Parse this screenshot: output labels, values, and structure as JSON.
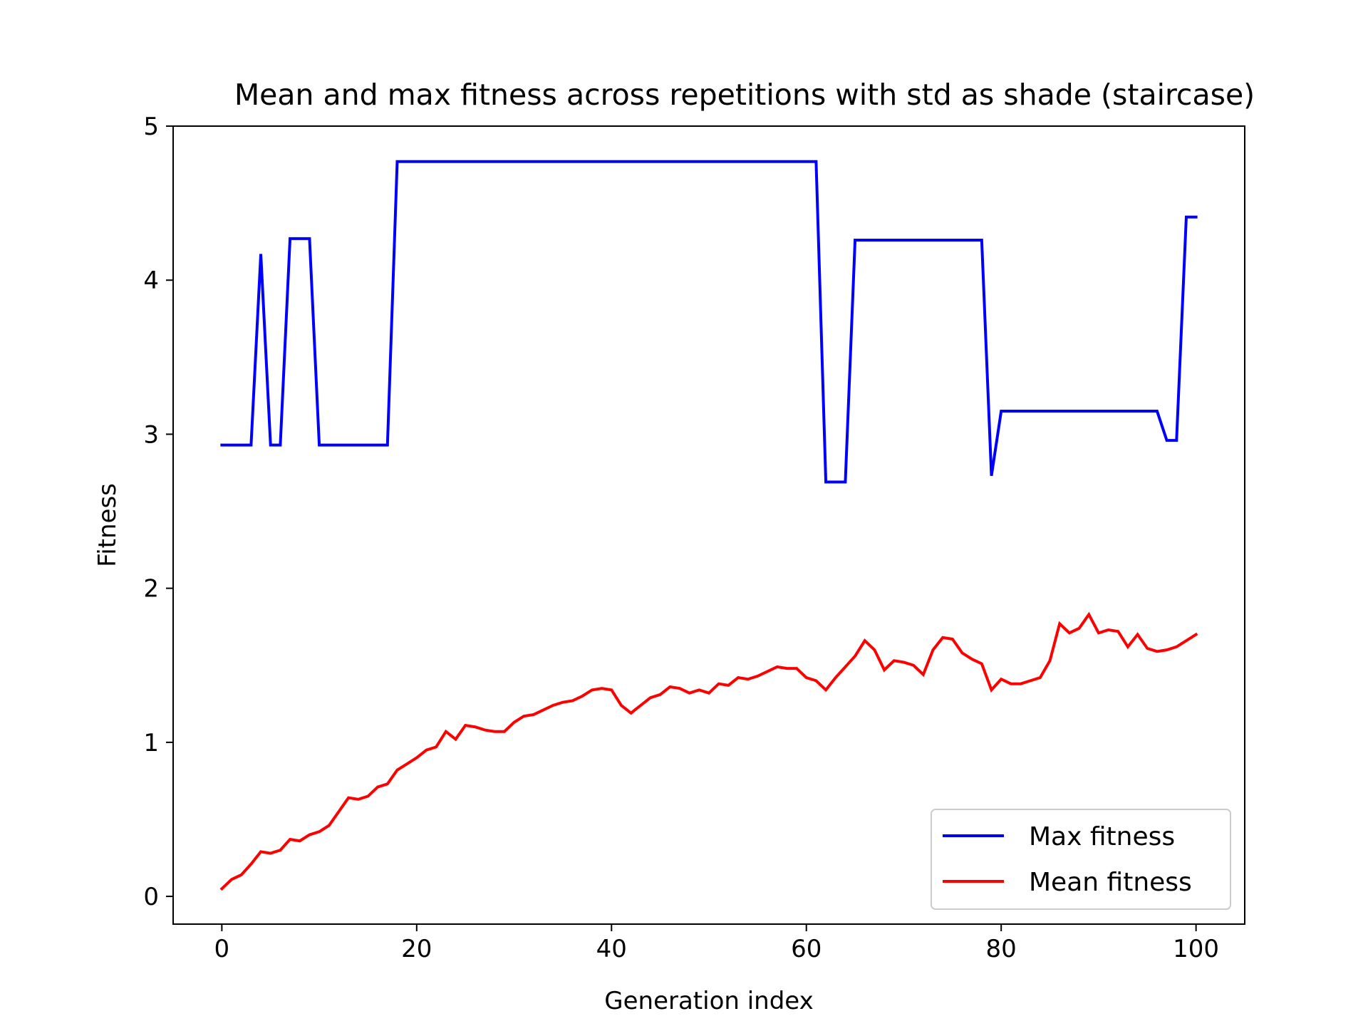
{
  "chart_data": {
    "type": "line",
    "title": "Mean and max fitness across repetitions with std as shade (staircase)",
    "xlabel": "Generation index",
    "ylabel": "Fitness",
    "xlim": [
      -5,
      105
    ],
    "ylim": [
      -0.18,
      5
    ],
    "xticks": [
      0,
      20,
      40,
      60,
      80,
      100
    ],
    "yticks": [
      0,
      1,
      2,
      3,
      4,
      5
    ],
    "grid": false,
    "legend_position": "lower-right",
    "x": [
      0,
      1,
      2,
      3,
      4,
      5,
      6,
      7,
      8,
      9,
      10,
      11,
      12,
      13,
      14,
      15,
      16,
      17,
      18,
      19,
      20,
      21,
      22,
      23,
      24,
      25,
      26,
      27,
      28,
      29,
      30,
      31,
      32,
      33,
      34,
      35,
      36,
      37,
      38,
      39,
      40,
      41,
      42,
      43,
      44,
      45,
      46,
      47,
      48,
      49,
      50,
      51,
      52,
      53,
      54,
      55,
      56,
      57,
      58,
      59,
      60,
      61,
      62,
      63,
      64,
      65,
      66,
      67,
      68,
      69,
      70,
      71,
      72,
      73,
      74,
      75,
      76,
      77,
      78,
      79,
      80,
      81,
      82,
      83,
      84,
      85,
      86,
      87,
      88,
      89,
      90,
      91,
      92,
      93,
      94,
      95,
      96,
      97,
      98,
      99,
      100
    ],
    "series": [
      {
        "name": "Max fitness",
        "color": "#0000ff",
        "values": [
          2.93,
          2.93,
          2.93,
          2.93,
          4.17,
          2.93,
          2.93,
          4.27,
          4.27,
          4.27,
          2.93,
          2.93,
          2.93,
          2.93,
          2.93,
          2.93,
          2.93,
          2.93,
          4.77,
          4.77,
          4.77,
          4.77,
          4.77,
          4.77,
          4.77,
          4.77,
          4.77,
          4.77,
          4.77,
          4.77,
          4.77,
          4.77,
          4.77,
          4.77,
          4.77,
          4.77,
          4.77,
          4.77,
          4.77,
          4.77,
          4.77,
          4.77,
          4.77,
          4.77,
          4.77,
          4.77,
          4.77,
          4.77,
          4.77,
          4.77,
          4.77,
          4.77,
          4.77,
          4.77,
          4.77,
          4.77,
          4.77,
          4.77,
          4.77,
          4.77,
          4.77,
          4.77,
          2.69,
          2.69,
          2.69,
          4.26,
          4.26,
          4.26,
          4.26,
          4.26,
          4.26,
          4.26,
          4.26,
          4.26,
          4.26,
          4.26,
          4.26,
          4.26,
          4.26,
          2.73,
          3.15,
          3.15,
          3.15,
          3.15,
          3.15,
          3.15,
          3.15,
          3.15,
          3.15,
          3.15,
          3.15,
          3.15,
          3.15,
          3.15,
          3.15,
          3.15,
          3.15,
          2.96,
          2.96,
          4.41,
          4.41
        ]
      },
      {
        "name": "Mean fitness",
        "color": "#ff0000",
        "values": [
          0.05,
          0.11,
          0.14,
          0.21,
          0.29,
          0.28,
          0.3,
          0.37,
          0.36,
          0.4,
          0.42,
          0.46,
          0.55,
          0.64,
          0.63,
          0.65,
          0.71,
          0.73,
          0.82,
          0.86,
          0.9,
          0.95,
          0.97,
          1.07,
          1.02,
          1.11,
          1.1,
          1.08,
          1.07,
          1.07,
          1.13,
          1.17,
          1.18,
          1.21,
          1.24,
          1.26,
          1.27,
          1.3,
          1.34,
          1.35,
          1.34,
          1.24,
          1.19,
          1.24,
          1.29,
          1.31,
          1.36,
          1.35,
          1.32,
          1.34,
          1.32,
          1.38,
          1.37,
          1.42,
          1.41,
          1.43,
          1.46,
          1.49,
          1.48,
          1.48,
          1.42,
          1.4,
          1.34,
          1.42,
          1.49,
          1.56,
          1.66,
          1.6,
          1.47,
          1.53,
          1.52,
          1.5,
          1.44,
          1.6,
          1.68,
          1.67,
          1.58,
          1.54,
          1.51,
          1.34,
          1.41,
          1.38,
          1.38,
          1.4,
          1.42,
          1.53,
          1.77,
          1.71,
          1.74,
          1.83,
          1.71,
          1.73,
          1.72,
          1.62,
          1.7,
          1.61,
          1.59,
          1.6,
          1.62,
          1.66,
          1.7
        ]
      }
    ]
  }
}
